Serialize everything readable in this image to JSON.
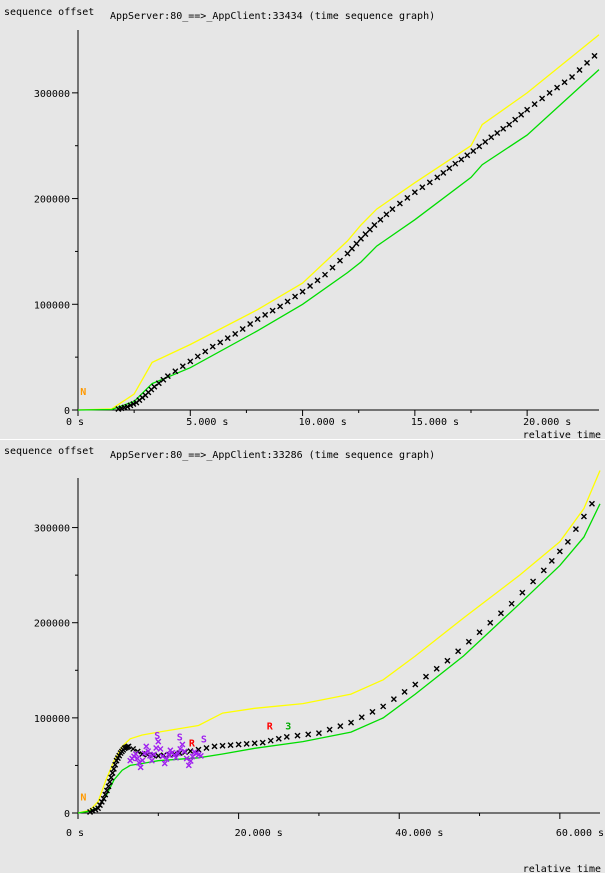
{
  "chart_data": [
    {
      "type": "line",
      "title": "AppServer:80_==>_AppClient:33434 (time sequence graph)",
      "ylabel": "sequence offset",
      "xlabel": "relative time",
      "xlim": [
        0,
        23.2
      ],
      "ylim": [
        0,
        350000
      ],
      "x_ticks": [
        {
          "value": 0,
          "label": "0 s"
        },
        {
          "value": 5,
          "label": "5.000  s"
        },
        {
          "value": 10,
          "label": "10.000  s"
        },
        {
          "value": 15,
          "label": "15.000  s"
        },
        {
          "value": 20,
          "label": "20.000  s"
        }
      ],
      "y_ticks": [
        {
          "value": 0,
          "label": "0"
        },
        {
          "value": 100000,
          "label": "100000"
        },
        {
          "value": 200000,
          "label": "200000"
        },
        {
          "value": 300000,
          "label": "300000"
        }
      ],
      "series": [
        {
          "color": "#ffff00",
          "style": "line",
          "points": [
            [
              0,
              0
            ],
            [
              1.5,
              1000
            ],
            [
              2.5,
              15000
            ],
            [
              3.3,
              45000
            ],
            [
              5,
              62000
            ],
            [
              8,
              95000
            ],
            [
              10,
              120000
            ],
            [
              12,
              160000
            ],
            [
              12.6,
              175000
            ],
            [
              13.3,
              190000
            ],
            [
              15,
              215000
            ],
            [
              17.5,
              250000
            ],
            [
              18,
              270000
            ],
            [
              20,
              300000
            ],
            [
              23.2,
              355000
            ]
          ]
        },
        {
          "color": "#00dd00",
          "style": "line",
          "points": [
            [
              0,
              0
            ],
            [
              1.5,
              500
            ],
            [
              2.5,
              8000
            ],
            [
              3.3,
              25000
            ],
            [
              5,
              40000
            ],
            [
              8,
              75000
            ],
            [
              10,
              100000
            ],
            [
              12,
              130000
            ],
            [
              12.6,
              140000
            ],
            [
              13.3,
              155000
            ],
            [
              15,
              180000
            ],
            [
              17.5,
              220000
            ],
            [
              18,
              232000
            ],
            [
              20,
              260000
            ],
            [
              23.2,
              322000
            ]
          ]
        },
        {
          "color": "#000000",
          "style": "cross",
          "points": [
            [
              1.8,
              1000
            ],
            [
              2.2,
              3000
            ],
            [
              2.6,
              7000
            ],
            [
              3.0,
              14000
            ],
            [
              3.4,
              22000
            ],
            [
              4,
              32000
            ],
            [
              5,
              46000
            ],
            [
              6,
              60000
            ],
            [
              7,
              72000
            ],
            [
              8,
              86000
            ],
            [
              9,
              98000
            ],
            [
              10,
              112000
            ],
            [
              11,
              128000
            ],
            [
              12,
              148000
            ],
            [
              12.6,
              162000
            ],
            [
              13.2,
              175000
            ],
            [
              14,
              190000
            ],
            [
              15,
              206000
            ],
            [
              16,
              220000
            ],
            [
              16.8,
              233000
            ],
            [
              17.6,
              245000
            ],
            [
              18.4,
              258000
            ],
            [
              19.2,
              270000
            ],
            [
              20,
              284000
            ],
            [
              21,
              300000
            ],
            [
              22,
              315000
            ],
            [
              23,
              335000
            ]
          ]
        }
      ],
      "annotations": [
        {
          "text": "N",
          "color": "#ff9900",
          "x": 0.1,
          "y": 14000
        }
      ]
    },
    {
      "type": "line",
      "title": "AppServer:80_==>_AppClient:33286 (time sequence graph)",
      "ylabel": "sequence offset",
      "xlabel": "relative time",
      "xlim": [
        0,
        65
      ],
      "ylim": [
        0,
        350000
      ],
      "x_ticks": [
        {
          "value": 0,
          "label": "0 s"
        },
        {
          "value": 20,
          "label": "20.000  s"
        },
        {
          "value": 40,
          "label": "40.000  s"
        },
        {
          "value": 60,
          "label": "60.000  s"
        }
      ],
      "y_ticks": [
        {
          "value": 0,
          "label": "0"
        },
        {
          "value": 100000,
          "label": "100000"
        },
        {
          "value": 200000,
          "label": "200000"
        },
        {
          "value": 300000,
          "label": "300000"
        }
      ],
      "series": [
        {
          "color": "#ffff00",
          "style": "line",
          "points": [
            [
              0,
              0
            ],
            [
              1.5,
              3000
            ],
            [
              2.5,
              12000
            ],
            [
              3.5,
              35000
            ],
            [
              4.5,
              55000
            ],
            [
              5.5,
              70000
            ],
            [
              6.5,
              78000
            ],
            [
              8,
              82000
            ],
            [
              10,
              85000
            ],
            [
              15,
              92000
            ],
            [
              18,
              105000
            ],
            [
              22,
              110000
            ],
            [
              28,
              115000
            ],
            [
              34,
              125000
            ],
            [
              38,
              140000
            ],
            [
              42,
              165000
            ],
            [
              48,
              205000
            ],
            [
              55,
              250000
            ],
            [
              60,
              285000
            ],
            [
              63,
              320000
            ],
            [
              65,
              360000
            ]
          ]
        },
        {
          "color": "#00dd00",
          "style": "line",
          "points": [
            [
              0,
              0
            ],
            [
              1.5,
              2000
            ],
            [
              2.5,
              6000
            ],
            [
              3.5,
              18000
            ],
            [
              4.5,
              35000
            ],
            [
              5.5,
              45000
            ],
            [
              6.5,
              50000
            ],
            [
              8,
              52000
            ],
            [
              10,
              55000
            ],
            [
              15,
              58000
            ],
            [
              18,
              62000
            ],
            [
              22,
              68000
            ],
            [
              28,
              75000
            ],
            [
              34,
              85000
            ],
            [
              38,
              100000
            ],
            [
              42,
              125000
            ],
            [
              48,
              165000
            ],
            [
              55,
              220000
            ],
            [
              60,
              260000
            ],
            [
              63,
              290000
            ],
            [
              65,
              325000
            ]
          ]
        },
        {
          "color": "#000000",
          "style": "cross",
          "points": [
            [
              1.5,
              1000
            ],
            [
              2.5,
              5000
            ],
            [
              3.2,
              15000
            ],
            [
              3.8,
              28000
            ],
            [
              4.3,
              42000
            ],
            [
              4.8,
              55000
            ],
            [
              5.3,
              63000
            ],
            [
              5.8,
              68000
            ],
            [
              6.3,
              70000
            ],
            [
              8,
              62000
            ],
            [
              10,
              60000
            ],
            [
              12,
              62000
            ],
            [
              14,
              65000
            ],
            [
              17,
              70000
            ],
            [
              20,
              72000
            ],
            [
              23,
              74000
            ],
            [
              26,
              80000
            ],
            [
              30,
              84000
            ],
            [
              34,
              95000
            ],
            [
              38,
              112000
            ],
            [
              42,
              135000
            ],
            [
              46,
              160000
            ],
            [
              50,
              190000
            ],
            [
              54,
              220000
            ],
            [
              58,
              255000
            ],
            [
              61,
              285000
            ],
            [
              64,
              325000
            ]
          ]
        },
        {
          "color": "#a020f0",
          "style": "cross",
          "points": [
            [
              6.5,
              55000
            ],
            [
              7.2,
              62000
            ],
            [
              7.8,
              48000
            ],
            [
              8.5,
              70000
            ],
            [
              9.2,
              55000
            ],
            [
              10,
              75000
            ],
            [
              10.8,
              52000
            ],
            [
              11.5,
              66000
            ],
            [
              12.2,
              58000
            ],
            [
              13,
              72000
            ],
            [
              13.8,
              50000
            ],
            [
              14.5,
              64000
            ],
            [
              15.3,
              60000
            ]
          ]
        }
      ],
      "annotations": [
        {
          "text": "N",
          "color": "#ff9900",
          "x": 0.3,
          "y": 13000
        },
        {
          "text": "S",
          "color": "#a020f0",
          "x": 9.5,
          "y": 78000
        },
        {
          "text": "S",
          "color": "#a020f0",
          "x": 12.3,
          "y": 76000
        },
        {
          "text": "S",
          "color": "#a020f0",
          "x": 15.3,
          "y": 74000
        },
        {
          "text": "R",
          "color": "#ff0000",
          "x": 13.8,
          "y": 70000
        },
        {
          "text": "R",
          "color": "#ff0000",
          "x": 23.5,
          "y": 88000
        },
        {
          "text": "3",
          "color": "#00aa00",
          "x": 25.8,
          "y": 88000
        }
      ]
    }
  ]
}
